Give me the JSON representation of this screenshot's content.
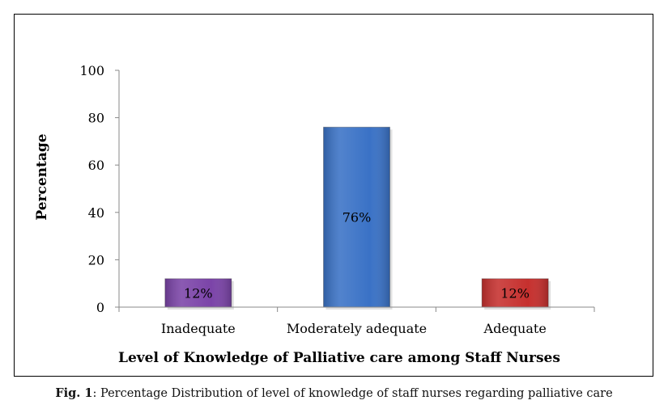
{
  "chart_data": {
    "type": "bar",
    "categories": [
      "Inadequate",
      "Moderately adequate",
      "Adequate"
    ],
    "values": [
      12,
      76,
      12
    ],
    "data_labels": [
      "12%",
      "76%",
      "12%"
    ],
    "colors": [
      "#7b44a8",
      "#3a72c6",
      "#c6302e"
    ],
    "ylabel": "Percentage",
    "xlabel": "Level of Knowledge of Palliative care among Staff Nurses",
    "ylim": [
      0,
      100
    ],
    "yticks": [
      0,
      20,
      40,
      60,
      80,
      100
    ],
    "grid": false,
    "legend": "none"
  },
  "caption": {
    "label": "Fig. 1",
    "text": "Percentage Distribution of level of knowledge of staff nurses regarding palliative care"
  }
}
